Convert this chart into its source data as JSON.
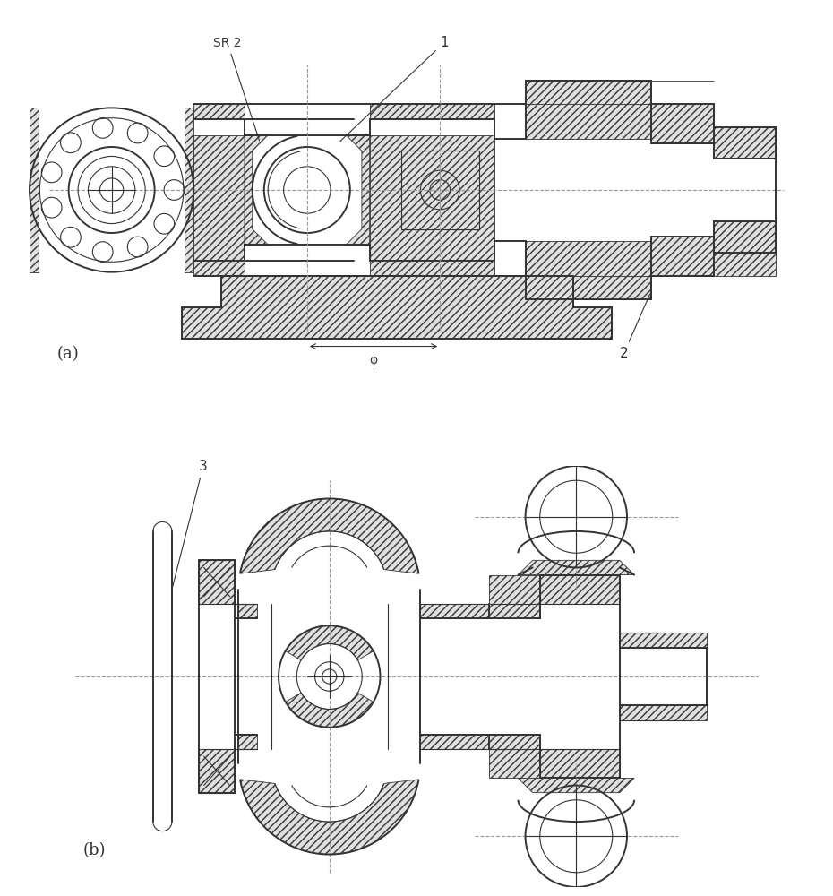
{
  "background_color": "#ffffff",
  "line_color": "#333333",
  "dash_color": "#999999",
  "label_a": "(a)",
  "label_b": "(b)",
  "ann_1": "1",
  "ann_2": "2",
  "ann_3": "3",
  "ann_sr2": "SR 2",
  "ann_phi": "φ",
  "figsize": [
    9.3,
    10.0
  ],
  "dpi": 100
}
